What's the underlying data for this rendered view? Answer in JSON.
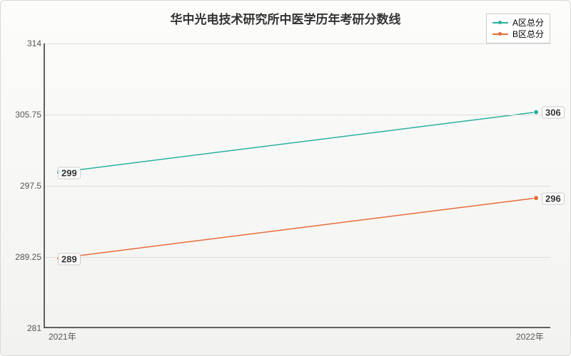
{
  "chart": {
    "type": "line",
    "title": "华中光电技术研究所中医学历年考研分数线",
    "title_fontsize": 17,
    "background_top": "#fcfcfb",
    "background_bottom": "#f2f2f0",
    "axis_color": "#606060",
    "grid_color": "#dcdcdc",
    "text_color": "#333333",
    "x": {
      "categories": [
        "2021年",
        "2022年"
      ]
    },
    "y": {
      "min": 281,
      "max": 314,
      "ticks": [
        281,
        289.25,
        297.5,
        305.75,
        314
      ]
    },
    "series": [
      {
        "name": "A区总分",
        "color": "#2ab19b",
        "marker": "circle",
        "line_width": 1.5,
        "values": [
          299,
          306
        ]
      },
      {
        "name": "B区总分",
        "color": "#e86c3a",
        "marker": "circle",
        "line_width": 1.5,
        "values": [
          289,
          296
        ]
      }
    ],
    "legend": {
      "position": "top-right",
      "bg": "#ffffff",
      "border": "#cccccc"
    }
  }
}
